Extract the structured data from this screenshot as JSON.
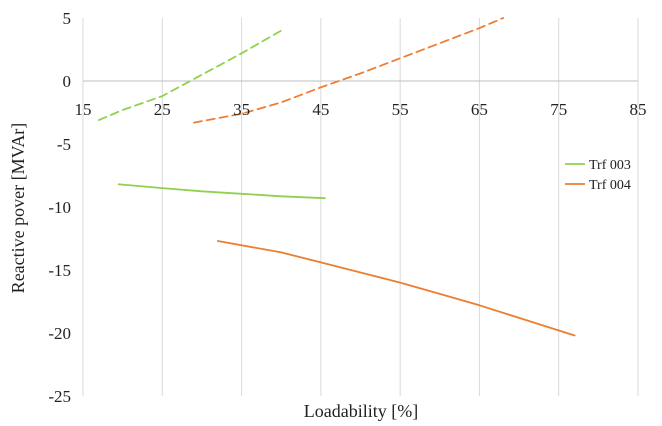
{
  "chart_data": {
    "type": "line",
    "xlabel": "Loadability [%]",
    "ylabel": "Reactive pover [MVAr]",
    "xlim": [
      15,
      85
    ],
    "ylim": [
      -25,
      5
    ],
    "x_ticks": [
      15,
      25,
      35,
      45,
      55,
      65,
      75,
      85
    ],
    "y_ticks": [
      5,
      0,
      -5,
      -10,
      -15,
      -20,
      -25
    ],
    "x_tick_labels": [
      "15",
      "25",
      "35",
      "45",
      "55",
      "65",
      "75",
      "85"
    ],
    "y_tick_labels": [
      "5",
      "0",
      "-5",
      "-10",
      "-15",
      "-20",
      "-25"
    ],
    "grid": "vertical",
    "legend_position": "right",
    "series": [
      {
        "name": "Trf 003",
        "color": "#92d050",
        "style": "solid",
        "x": [
          19.5,
          25,
          30,
          35,
          40,
          45.5
        ],
        "y": [
          -8.2,
          -8.5,
          -8.75,
          -8.95,
          -9.15,
          -9.3
        ]
      },
      {
        "name": "Trf 004",
        "color": "#ed7d31",
        "style": "solid",
        "x": [
          32,
          40,
          45,
          50,
          55,
          60,
          65,
          70,
          77
        ],
        "y": [
          -12.7,
          -13.6,
          -14.4,
          -15.2,
          -16.0,
          -16.9,
          -17.8,
          -18.8,
          -20.2
        ]
      },
      {
        "name": "",
        "color": "#92d050",
        "style": "dashed",
        "x": [
          17,
          20,
          25,
          30,
          35,
          40
        ],
        "y": [
          -3.1,
          -2.3,
          -1.2,
          0.5,
          2.2,
          4.0
        ]
      },
      {
        "name": "",
        "color": "#ed7d31",
        "style": "dashed",
        "x": [
          29,
          35,
          40,
          45,
          50,
          55,
          60,
          65,
          68
        ],
        "y": [
          -3.3,
          -2.6,
          -1.7,
          -0.5,
          0.6,
          1.8,
          3.0,
          4.2,
          5.0
        ]
      }
    ]
  }
}
